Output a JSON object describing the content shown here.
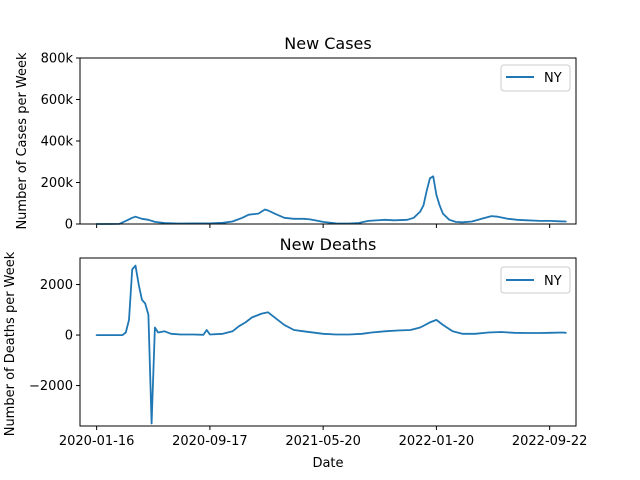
{
  "chart_data": [
    {
      "type": "line",
      "title": "New Cases",
      "xlabel": "",
      "ylabel": "Number of Cases per Week",
      "ylim": [
        0,
        800000
      ],
      "yticks": [
        0,
        200000,
        400000,
        600000,
        800000
      ],
      "ytick_labels": [
        "0",
        "200k",
        "400k",
        "600k",
        "800k"
      ],
      "xlim": [
        "2019-12-11",
        "2022-11-18"
      ],
      "xticks": [
        "2020-01-16",
        "2020-09-17",
        "2021-05-20",
        "2022-01-20",
        "2022-09-22"
      ],
      "show_xtick_labels": false,
      "grid": false,
      "legend": {
        "position": "top-right"
      },
      "series": [
        {
          "name": "NY",
          "color": "#1f77b4",
          "points": [
            [
              "2020-01-16",
              0
            ],
            [
              "2020-02-13",
              0
            ],
            [
              "2020-03-05",
              500
            ],
            [
              "2020-03-19",
              15000
            ],
            [
              "2020-04-02",
              30000
            ],
            [
              "2020-04-09",
              35000
            ],
            [
              "2020-04-23",
              25000
            ],
            [
              "2020-05-07",
              20000
            ],
            [
              "2020-05-21",
              10000
            ],
            [
              "2020-06-11",
              5000
            ],
            [
              "2020-07-09",
              2500
            ],
            [
              "2020-08-13",
              3000
            ],
            [
              "2020-09-17",
              3000
            ],
            [
              "2020-10-15",
              6000
            ],
            [
              "2020-11-05",
              12000
            ],
            [
              "2020-11-26",
              30000
            ],
            [
              "2020-12-10",
              45000
            ],
            [
              "2020-12-31",
              50000
            ],
            [
              "2021-01-14",
              70000
            ],
            [
              "2021-01-21",
              65000
            ],
            [
              "2021-02-04",
              50000
            ],
            [
              "2021-02-25",
              30000
            ],
            [
              "2021-03-18",
              25000
            ],
            [
              "2021-04-08",
              25000
            ],
            [
              "2021-04-22",
              22000
            ],
            [
              "2021-05-20",
              10000
            ],
            [
              "2021-06-17",
              3000
            ],
            [
              "2021-07-15",
              2500
            ],
            [
              "2021-08-05",
              5000
            ],
            [
              "2021-08-26",
              15000
            ],
            [
              "2021-09-30",
              20000
            ],
            [
              "2021-10-21",
              18000
            ],
            [
              "2021-11-18",
              20000
            ],
            [
              "2021-12-02",
              30000
            ],
            [
              "2021-12-16",
              60000
            ],
            [
              "2021-12-23",
              90000
            ],
            [
              "2021-12-30",
              160000
            ],
            [
              "2022-01-06",
              220000
            ],
            [
              "2022-01-13",
              230000
            ],
            [
              "2022-01-20",
              140000
            ],
            [
              "2022-01-27",
              90000
            ],
            [
              "2022-02-03",
              50000
            ],
            [
              "2022-02-17",
              20000
            ],
            [
              "2022-03-03",
              10000
            ],
            [
              "2022-03-17",
              8000
            ],
            [
              "2022-04-07",
              12000
            ],
            [
              "2022-04-28",
              25000
            ],
            [
              "2022-05-19",
              38000
            ],
            [
              "2022-06-02",
              35000
            ],
            [
              "2022-06-23",
              25000
            ],
            [
              "2022-07-14",
              20000
            ],
            [
              "2022-08-04",
              18000
            ],
            [
              "2022-09-01",
              15000
            ],
            [
              "2022-09-22",
              15000
            ],
            [
              "2022-10-13",
              13000
            ],
            [
              "2022-10-27",
              12000
            ]
          ]
        }
      ]
    },
    {
      "type": "line",
      "title": "New Deaths",
      "xlabel": "Date",
      "ylabel": "Number of Deaths per Week",
      "ylim": [
        -3600,
        3050
      ],
      "yticks": [
        -2000,
        0,
        2000
      ],
      "ytick_labels": [
        "−2000",
        "0",
        "2000"
      ],
      "xlim": [
        "2019-12-11",
        "2022-11-18"
      ],
      "xticks": [
        "2020-01-16",
        "2020-09-17",
        "2021-05-20",
        "2022-01-20",
        "2022-09-22"
      ],
      "xtick_labels": [
        "2020-01-16",
        "2020-09-17",
        "2021-05-20",
        "2022-01-20",
        "2022-09-22"
      ],
      "show_xtick_labels": true,
      "grid": false,
      "legend": {
        "position": "top-right"
      },
      "series": [
        {
          "name": "NY",
          "color": "#1f77b4",
          "points": [
            [
              "2020-01-16",
              0
            ],
            [
              "2020-02-13",
              0
            ],
            [
              "2020-03-12",
              0
            ],
            [
              "2020-03-19",
              100
            ],
            [
              "2020-03-26",
              600
            ],
            [
              "2020-04-02",
              2600
            ],
            [
              "2020-04-09",
              2750
            ],
            [
              "2020-04-16",
              2000
            ],
            [
              "2020-04-23",
              1400
            ],
            [
              "2020-04-30",
              1250
            ],
            [
              "2020-05-07",
              800
            ],
            [
              "2020-05-14",
              -3500
            ],
            [
              "2020-05-21",
              300
            ],
            [
              "2020-05-28",
              100
            ],
            [
              "2020-06-11",
              150
            ],
            [
              "2020-06-25",
              50
            ],
            [
              "2020-07-16",
              20
            ],
            [
              "2020-08-13",
              20
            ],
            [
              "2020-09-03",
              10
            ],
            [
              "2020-09-10",
              200
            ],
            [
              "2020-09-17",
              20
            ],
            [
              "2020-10-15",
              50
            ],
            [
              "2020-11-05",
              150
            ],
            [
              "2020-11-19",
              350
            ],
            [
              "2020-12-03",
              500
            ],
            [
              "2020-12-17",
              700
            ],
            [
              "2021-01-07",
              850
            ],
            [
              "2021-01-21",
              900
            ],
            [
              "2021-02-04",
              700
            ],
            [
              "2021-02-25",
              400
            ],
            [
              "2021-03-18",
              200
            ],
            [
              "2021-04-08",
              150
            ],
            [
              "2021-05-20",
              50
            ],
            [
              "2021-06-17",
              20
            ],
            [
              "2021-07-15",
              20
            ],
            [
              "2021-08-12",
              50
            ],
            [
              "2021-09-02",
              100
            ],
            [
              "2021-09-30",
              150
            ],
            [
              "2021-10-28",
              180
            ],
            [
              "2021-11-25",
              200
            ],
            [
              "2021-12-16",
              300
            ],
            [
              "2022-01-06",
              500
            ],
            [
              "2022-01-20",
              600
            ],
            [
              "2022-02-03",
              400
            ],
            [
              "2022-02-24",
              150
            ],
            [
              "2022-03-17",
              50
            ],
            [
              "2022-04-14",
              50
            ],
            [
              "2022-05-12",
              100
            ],
            [
              "2022-06-09",
              120
            ],
            [
              "2022-07-07",
              90
            ],
            [
              "2022-08-04",
              80
            ],
            [
              "2022-09-01",
              80
            ],
            [
              "2022-09-22",
              90
            ],
            [
              "2022-10-20",
              100
            ],
            [
              "2022-10-27",
              90
            ]
          ]
        }
      ]
    }
  ]
}
